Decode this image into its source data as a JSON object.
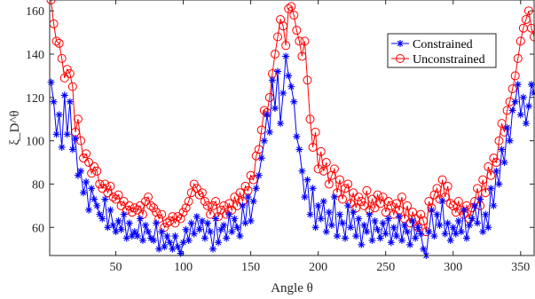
{
  "chart_data": {
    "type": "line",
    "xlabel": "Angle θ",
    "ylabel": "ξ_D^θ",
    "xlim": [
      1,
      360
    ],
    "ylim": [
      47,
      165
    ],
    "xticks": [
      50,
      100,
      150,
      200,
      250,
      300,
      350
    ],
    "yticks": [
      60,
      80,
      100,
      120,
      140,
      160
    ],
    "grid": false,
    "legend_position": "top-right",
    "x": [
      2,
      4,
      6,
      8,
      10,
      12,
      14,
      16,
      18,
      20,
      22,
      24,
      26,
      28,
      30,
      32,
      34,
      36,
      38,
      40,
      42,
      44,
      46,
      48,
      50,
      52,
      54,
      56,
      58,
      60,
      62,
      64,
      66,
      68,
      70,
      72,
      74,
      76,
      78,
      80,
      82,
      84,
      86,
      88,
      90,
      92,
      94,
      96,
      98,
      100,
      102,
      104,
      106,
      108,
      110,
      112,
      114,
      116,
      118,
      120,
      122,
      124,
      126,
      128,
      130,
      132,
      134,
      136,
      138,
      140,
      142,
      144,
      146,
      148,
      150,
      152,
      154,
      156,
      158,
      160,
      162,
      164,
      166,
      168,
      170,
      172,
      174,
      176,
      178,
      180,
      182,
      184,
      186,
      188,
      190,
      192,
      194,
      196,
      198,
      200,
      202,
      204,
      206,
      208,
      210,
      212,
      214,
      216,
      218,
      220,
      222,
      224,
      226,
      228,
      230,
      232,
      234,
      236,
      238,
      240,
      242,
      244,
      246,
      248,
      250,
      252,
      254,
      256,
      258,
      260,
      262,
      264,
      266,
      268,
      270,
      272,
      274,
      276,
      278,
      280,
      282,
      284,
      286,
      288,
      290,
      292,
      294,
      296,
      298,
      300,
      302,
      304,
      306,
      308,
      310,
      312,
      314,
      316,
      318,
      320,
      322,
      324,
      326,
      328,
      330,
      332,
      334,
      336,
      338,
      340,
      342,
      344,
      346,
      348,
      350,
      352,
      354,
      356,
      358,
      360
    ],
    "series": [
      {
        "name": "Constrained",
        "color": "#0000ff",
        "marker": "asterisk",
        "values": [
          127,
          118,
          103,
          112,
          97,
          121,
          103,
          118,
          96,
          101,
          84,
          86,
          76,
          81,
          68,
          78,
          73,
          70,
          66,
          64,
          73,
          60,
          68,
          61,
          58,
          63,
          59,
          66,
          55,
          62,
          56,
          58,
          56,
          64,
          54,
          61,
          58,
          55,
          54,
          62,
          50,
          58,
          51,
          56,
          53,
          50,
          56,
          51,
          48,
          53,
          59,
          54,
          62,
          57,
          65,
          59,
          63,
          55,
          62,
          58,
          50,
          64,
          53,
          59,
          61,
          55,
          66,
          58,
          64,
          60,
          56,
          70,
          62,
          74,
          63,
          72,
          78,
          84,
          92,
          100,
          112,
          104,
          128,
          115,
          132,
          108,
          122,
          139,
          130,
          125,
          118,
          102,
          96,
          86,
          74,
          82,
          66,
          78,
          60,
          70,
          64,
          72,
          58,
          67,
          61,
          74,
          56,
          66,
          62,
          55,
          70,
          60,
          67,
          56,
          64,
          52,
          61,
          58,
          66,
          54,
          63,
          59,
          55,
          62,
          57,
          64,
          53,
          60,
          56,
          65,
          54,
          61,
          58,
          52,
          63,
          55,
          60,
          57,
          50,
          47,
          58,
          68,
          56,
          66,
          61,
          72,
          57,
          62,
          54,
          60,
          57,
          63,
          58,
          68,
          55,
          61,
          64,
          70,
          62,
          73,
          58,
          66,
          60,
          78,
          70,
          86,
          80,
          96,
          90,
          106,
          100,
          114,
          118,
          126,
          112,
          120,
          108,
          116,
          126,
          122
        ]
      },
      {
        "name": "Unconstrained",
        "color": "#ff0000",
        "marker": "circle",
        "values": [
          165,
          154,
          146,
          145,
          138,
          129,
          133,
          131,
          125,
          104,
          110,
          100,
          92,
          94,
          90,
          85,
          88,
          86,
          80,
          78,
          80,
          76,
          79,
          74,
          73,
          75,
          70,
          72,
          68,
          70,
          67,
          69,
          68,
          70,
          66,
          72,
          74,
          70,
          69,
          67,
          64,
          66,
          60,
          62,
          63,
          65,
          62,
          65,
          64,
          67,
          69,
          72,
          76,
          80,
          78,
          75,
          76,
          72,
          70,
          66,
          70,
          72,
          65,
          68,
          70,
          66,
          71,
          68,
          74,
          70,
          76,
          72,
          79,
          77,
          84,
          82,
          93,
          96,
          105,
          114,
          113,
          120,
          131,
          140,
          148,
          156,
          153,
          144,
          161,
          162,
          158,
          151,
          146,
          139,
          146,
          128,
          110,
          97,
          104,
          87,
          95,
          86,
          90,
          80,
          84,
          87,
          76,
          82,
          73,
          78,
          80,
          71,
          76,
          69,
          74,
          72,
          70,
          77,
          68,
          73,
          69,
          75,
          71,
          74,
          67,
          72,
          70,
          66,
          71,
          68,
          74,
          64,
          70,
          62,
          67,
          64,
          60,
          66,
          63,
          58,
          72,
          69,
          75,
          78,
          73,
          82,
          74,
          79,
          71,
          70,
          67,
          72,
          68,
          66,
          70,
          64,
          69,
          72,
          78,
          70,
          82,
          76,
          88,
          84,
          92,
          90,
          100,
          108,
          104,
          114,
          118,
          124,
          130,
          138,
          146,
          152,
          156,
          160,
          152,
          148
        ]
      }
    ]
  }
}
